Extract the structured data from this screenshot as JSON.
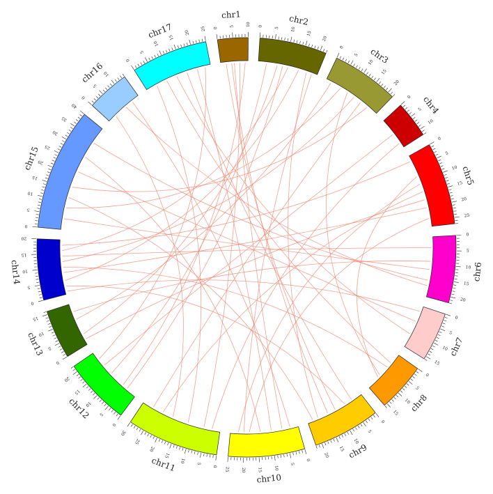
{
  "chart_data": {
    "type": "circos",
    "chromosomes": [
      {
        "name": "chr1",
        "length": 10,
        "color": "#996600",
        "ticks": [
          0,
          5,
          10
        ]
      },
      {
        "name": "chr2",
        "length": 22,
        "color": "#666600",
        "ticks": [
          0,
          5,
          10,
          15,
          20
        ]
      },
      {
        "name": "chr3",
        "length": 22,
        "color": "#999933",
        "ticks": [
          0,
          5,
          10,
          15,
          20
        ]
      },
      {
        "name": "chr4",
        "length": 12,
        "color": "#cc0000",
        "ticks": [
          0,
          5,
          10
        ]
      },
      {
        "name": "chr5",
        "length": 27,
        "color": "#ff0000",
        "ticks": [
          0,
          5,
          10,
          15,
          20,
          25
        ]
      },
      {
        "name": "chr6",
        "length": 22,
        "color": "#ff00cc",
        "ticks": [
          0,
          5,
          10,
          15,
          20
        ]
      },
      {
        "name": "chr7",
        "length": 16,
        "color": "#ffcccc",
        "ticks": [
          0,
          5,
          10,
          15
        ]
      },
      {
        "name": "chr8",
        "length": 16,
        "color": "#ff9900",
        "ticks": [
          0,
          5,
          10,
          15
        ]
      },
      {
        "name": "chr9",
        "length": 22,
        "color": "#ffcc00",
        "ticks": [
          0,
          5,
          10,
          15,
          20
        ]
      },
      {
        "name": "chr10",
        "length": 25,
        "color": "#ffff00",
        "ticks": [
          0,
          5,
          10,
          15,
          20,
          25
        ]
      },
      {
        "name": "chr11",
        "length": 30,
        "color": "#ccff00",
        "ticks": [
          0,
          5,
          10,
          15,
          20,
          25,
          30
        ]
      },
      {
        "name": "chr12",
        "length": 22,
        "color": "#00ff00",
        "ticks": [
          0,
          5,
          10,
          15,
          20
        ]
      },
      {
        "name": "chr13",
        "length": 16,
        "color": "#336600",
        "ticks": [
          0,
          5,
          10,
          15
        ]
      },
      {
        "name": "chr14",
        "length": 20,
        "color": "#0000cc",
        "ticks": [
          0,
          5,
          10,
          15,
          20
        ]
      },
      {
        "name": "chr15",
        "length": 40,
        "color": "#6699ff",
        "ticks": [
          0,
          5,
          10,
          15,
          20,
          25,
          30,
          35,
          40
        ]
      },
      {
        "name": "chr16",
        "length": 14,
        "color": "#99ccff",
        "ticks": [
          0,
          5,
          10
        ]
      },
      {
        "name": "chr17",
        "length": 25,
        "color": "#00ffff",
        "ticks": [
          0,
          5,
          10,
          15,
          20,
          25
        ]
      }
    ],
    "link_color": "#f0806a",
    "links": [
      {
        "from": [
          "chr1",
          2
        ],
        "to": [
          "chr9",
          11
        ]
      },
      {
        "from": [
          "chr1",
          4
        ],
        "to": [
          "chr9",
          14
        ]
      },
      {
        "from": [
          "chr1",
          5
        ],
        "to": [
          "chr10",
          6
        ]
      },
      {
        "from": [
          "chr1",
          7
        ],
        "to": [
          "chr11",
          6
        ]
      },
      {
        "from": [
          "chr1",
          9
        ],
        "to": [
          "chr12",
          6
        ]
      },
      {
        "from": [
          "chr2",
          3
        ],
        "to": [
          "chr12",
          12
        ]
      },
      {
        "from": [
          "chr2",
          7
        ],
        "to": [
          "chr13",
          4
        ]
      },
      {
        "from": [
          "chr2",
          11
        ],
        "to": [
          "chr14",
          16
        ]
      },
      {
        "from": [
          "chr2",
          15
        ],
        "to": [
          "chr14",
          5
        ]
      },
      {
        "from": [
          "chr3",
          2
        ],
        "to": [
          "chr13",
          10
        ]
      },
      {
        "from": [
          "chr3",
          6
        ],
        "to": [
          "chr15",
          8
        ]
      },
      {
        "from": [
          "chr3",
          12
        ],
        "to": [
          "chr14",
          12
        ]
      },
      {
        "from": [
          "chr3",
          18
        ],
        "to": [
          "chr15",
          16
        ]
      },
      {
        "from": [
          "chr4",
          6
        ],
        "to": [
          "chr12",
          16
        ]
      },
      {
        "from": [
          "chr5",
          2
        ],
        "to": [
          "chr14",
          18
        ]
      },
      {
        "from": [
          "chr5",
          8
        ],
        "to": [
          "chr8",
          11
        ]
      },
      {
        "from": [
          "chr5",
          14
        ],
        "to": [
          "chr11",
          22
        ]
      },
      {
        "from": [
          "chr5",
          20
        ],
        "to": [
          "chr14",
          8
        ]
      },
      {
        "from": [
          "chr5",
          24
        ],
        "to": [
          "chr10",
          18
        ]
      },
      {
        "from": [
          "chr6",
          4
        ],
        "to": [
          "chr14",
          14
        ]
      },
      {
        "from": [
          "chr6",
          12
        ],
        "to": [
          "chr15",
          4
        ]
      },
      {
        "from": [
          "chr6",
          18
        ],
        "to": [
          "chr16",
          8
        ]
      },
      {
        "from": [
          "chr7",
          6
        ],
        "to": [
          "chr15",
          22
        ]
      },
      {
        "from": [
          "chr8",
          4
        ],
        "to": [
          "chr17",
          8
        ]
      },
      {
        "from": [
          "chr8",
          10
        ],
        "to": [
          "chr3",
          9
        ]
      },
      {
        "from": [
          "chr9",
          4
        ],
        "to": [
          "chr17",
          16
        ]
      },
      {
        "from": [
          "chr9",
          18
        ],
        "to": [
          "chr2",
          18
        ]
      },
      {
        "from": [
          "chr10",
          10
        ],
        "to": [
          "chr17",
          20
        ]
      },
      {
        "from": [
          "chr10",
          22
        ],
        "to": [
          "chr5",
          11
        ]
      },
      {
        "from": [
          "chr11",
          12
        ],
        "to": [
          "chr17",
          4
        ]
      },
      {
        "from": [
          "chr11",
          26
        ],
        "to": [
          "chr3",
          15
        ]
      },
      {
        "from": [
          "chr12",
          4
        ],
        "to": [
          "chr2",
          9
        ]
      },
      {
        "from": [
          "chr13",
          2
        ],
        "to": [
          "chr5",
          17
        ]
      },
      {
        "from": [
          "chr13",
          13
        ],
        "to": [
          "chr6",
          9
        ]
      },
      {
        "from": [
          "chr14",
          3
        ],
        "to": [
          "chr9",
          7
        ]
      },
      {
        "from": [
          "chr14",
          10
        ],
        "to": [
          "chr8",
          6
        ]
      },
      {
        "from": [
          "chr15",
          12
        ],
        "to": [
          "chr9",
          20
        ]
      },
      {
        "from": [
          "chr15",
          28
        ],
        "to": [
          "chr10",
          14
        ]
      },
      {
        "from": [
          "chr15",
          34
        ],
        "to": [
          "chr6",
          16
        ]
      },
      {
        "from": [
          "chr16",
          3
        ],
        "to": [
          "chr11",
          18
        ]
      },
      {
        "from": [
          "chr16",
          11
        ],
        "to": [
          "chr10",
          3
        ]
      },
      {
        "from": [
          "chr17",
          12
        ],
        "to": [
          "chr7",
          11
        ]
      },
      {
        "from": [
          "chr17",
          23
        ],
        "to": [
          "chr12",
          19
        ]
      },
      {
        "from": [
          "chr4",
          10
        ],
        "to": [
          "chr11",
          3
        ]
      },
      {
        "from": [
          "chr7",
          2
        ],
        "to": [
          "chr14",
          1
        ]
      },
      {
        "from": [
          "chr2",
          20
        ],
        "to": [
          "chr10",
          20
        ]
      }
    ]
  }
}
